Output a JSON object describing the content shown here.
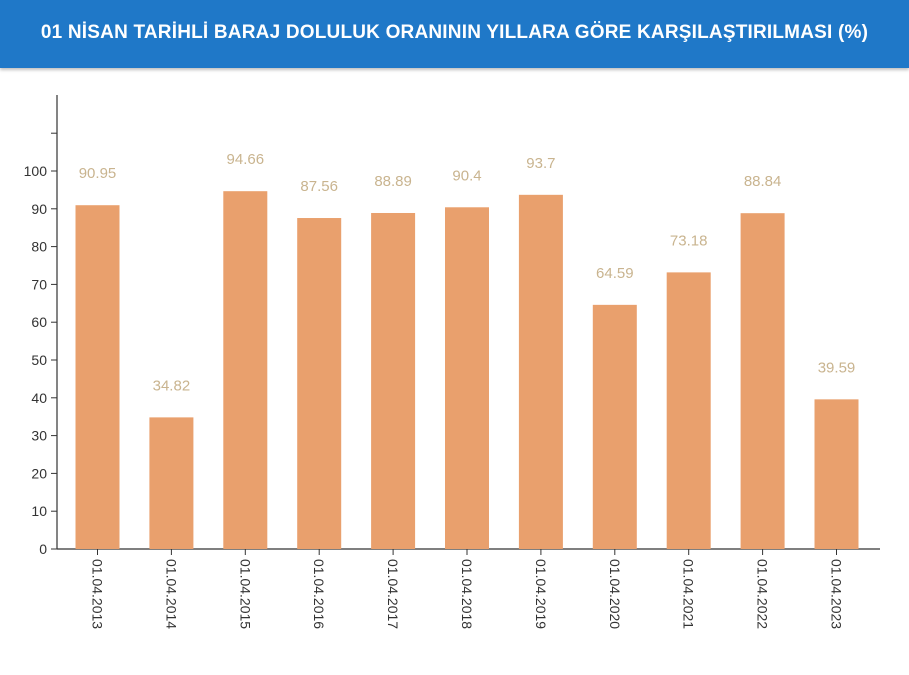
{
  "header": {
    "title": "01 NİSAN TARİHLİ BARAJ DOLULUK ORANININ YILLARA GÖRE KARŞILAŞTIRILMASI (%)"
  },
  "colors": {
    "header_bg": "#1f78c8",
    "bar": "#e9a06d",
    "data_label": "#c9b48f",
    "axis": "#333333"
  },
  "chart_data": {
    "type": "bar",
    "title": "01 NİSAN TARİHLİ BARAJ DOLULUK ORANININ YILLARA GÖRE KARŞILAŞTIRILMASI (%)",
    "categories": [
      "01.04.2013",
      "01.04.2014",
      "01.04.2015",
      "01.04.2016",
      "01.04.2017",
      "01.04.2018",
      "01.04.2019",
      "01.04.2020",
      "01.04.2021",
      "01.04.2022",
      "01.04.2023"
    ],
    "values": [
      90.95,
      34.82,
      94.66,
      87.56,
      88.89,
      90.4,
      93.7,
      64.59,
      73.18,
      88.84,
      39.59
    ],
    "value_labels": [
      "90.95",
      "34.82",
      "94.66",
      "87.56",
      "88.89",
      "90.4",
      "93.7",
      "64.59",
      "73.18",
      "88.84",
      "39.59"
    ],
    "yticks": [
      "0",
      "10",
      "20",
      "30",
      "40",
      "50",
      "60",
      "70",
      "80",
      "90",
      "100"
    ],
    "ylim": [
      0,
      100
    ],
    "grid": false,
    "legend": "none"
  }
}
